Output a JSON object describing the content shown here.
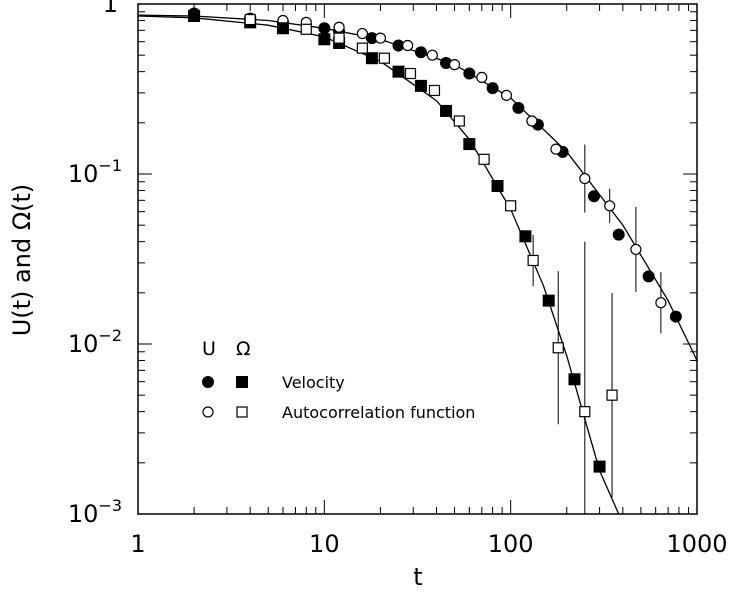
{
  "chart_data": {
    "type": "scatter",
    "title": "",
    "xlabel": "t",
    "ylabel": "U(t) and Ω(t)",
    "xscale": "log",
    "yscale": "log",
    "xlim": [
      1,
      1000
    ],
    "ylim": [
      0.001,
      1
    ],
    "grid": false,
    "x_ticks": [
      {
        "value": 1,
        "label": "1"
      },
      {
        "value": 10,
        "label": "10"
      },
      {
        "value": 100,
        "label": "100"
      },
      {
        "value": 1000,
        "label": "1000"
      }
    ],
    "y_ticks": [
      {
        "value": 1,
        "base": "1",
        "exp": ""
      },
      {
        "value": 0.1,
        "base": "10",
        "exp": "−1"
      },
      {
        "value": 0.01,
        "base": "10",
        "exp": "−2"
      },
      {
        "value": 0.001,
        "base": "10",
        "exp": "−3"
      }
    ],
    "legend": {
      "placement": "lower-left",
      "header_u": "U",
      "header_omega": "Ω",
      "rows": [
        {
          "label": "Velocity"
        },
        {
          "label": "Autocorrelation function"
        }
      ]
    },
    "series": [
      {
        "quantity": "U",
        "kind": "velocity",
        "marker": "filled-circle",
        "points": [
          {
            "x": 2,
            "y": 0.88
          },
          {
            "x": 4,
            "y": 0.82
          },
          {
            "x": 6,
            "y": 0.78
          },
          {
            "x": 10,
            "y": 0.72
          },
          {
            "x": 12,
            "y": 0.69
          },
          {
            "x": 18,
            "y": 0.63
          },
          {
            "x": 25,
            "y": 0.57
          },
          {
            "x": 33,
            "y": 0.52
          },
          {
            "x": 45,
            "y": 0.45
          },
          {
            "x": 60,
            "y": 0.39
          },
          {
            "x": 80,
            "y": 0.32
          },
          {
            "x": 110,
            "y": 0.245
          },
          {
            "x": 140,
            "y": 0.195
          },
          {
            "x": 190,
            "y": 0.135
          },
          {
            "x": 280,
            "y": 0.074
          },
          {
            "x": 380,
            "y": 0.044
          },
          {
            "x": 550,
            "y": 0.025
          },
          {
            "x": 770,
            "y": 0.0145
          }
        ]
      },
      {
        "quantity": "U",
        "kind": "autocorrelation",
        "marker": "open-circle",
        "points": [
          {
            "x": 6,
            "y": 0.8,
            "err": 0
          },
          {
            "x": 8,
            "y": 0.78,
            "err": 0
          },
          {
            "x": 12,
            "y": 0.73,
            "err": 0
          },
          {
            "x": 16,
            "y": 0.67,
            "err": 0
          },
          {
            "x": 20,
            "y": 0.63,
            "err": 0
          },
          {
            "x": 28,
            "y": 0.57,
            "err": 0
          },
          {
            "x": 38,
            "y": 0.5,
            "err": 0
          },
          {
            "x": 50,
            "y": 0.44,
            "err": 0
          },
          {
            "x": 70,
            "y": 0.37,
            "err": 0
          },
          {
            "x": 95,
            "y": 0.29,
            "err": 0
          },
          {
            "x": 130,
            "y": 0.205,
            "err": 0
          },
          {
            "x": 175,
            "y": 0.14,
            "err": 0
          },
          {
            "x": 250,
            "y": 0.094,
            "err": 0.2
          },
          {
            "x": 340,
            "y": 0.065,
            "err": 0.1
          },
          {
            "x": 470,
            "y": 0.036,
            "err": 0.25
          },
          {
            "x": 640,
            "y": 0.0175,
            "err": 0.18
          }
        ]
      },
      {
        "quantity": "Ω",
        "kind": "velocity",
        "marker": "filled-square",
        "points": [
          {
            "x": 2,
            "y": 0.85
          },
          {
            "x": 4,
            "y": 0.78
          },
          {
            "x": 6,
            "y": 0.72
          },
          {
            "x": 10,
            "y": 0.62
          },
          {
            "x": 12,
            "y": 0.59
          },
          {
            "x": 18,
            "y": 0.48
          },
          {
            "x": 25,
            "y": 0.4
          },
          {
            "x": 33,
            "y": 0.33
          },
          {
            "x": 45,
            "y": 0.235
          },
          {
            "x": 60,
            "y": 0.15
          },
          {
            "x": 85,
            "y": 0.085
          },
          {
            "x": 120,
            "y": 0.043
          },
          {
            "x": 160,
            "y": 0.018
          },
          {
            "x": 220,
            "y": 0.0062
          },
          {
            "x": 300,
            "y": 0.0019
          }
        ]
      },
      {
        "quantity": "Ω",
        "kind": "autocorrelation",
        "marker": "open-square",
        "points": [
          {
            "x": 4,
            "y": 0.81,
            "err": 0
          },
          {
            "x": 8,
            "y": 0.71,
            "err": 0
          },
          {
            "x": 12,
            "y": 0.63,
            "err": 0
          },
          {
            "x": 16,
            "y": 0.55,
            "err": 0
          },
          {
            "x": 21,
            "y": 0.48,
            "err": 0
          },
          {
            "x": 29,
            "y": 0.39,
            "err": 0
          },
          {
            "x": 39,
            "y": 0.31,
            "err": 0
          },
          {
            "x": 53,
            "y": 0.205,
            "err": 0
          },
          {
            "x": 72,
            "y": 0.122,
            "err": 0
          },
          {
            "x": 100,
            "y": 0.065,
            "err": 0
          },
          {
            "x": 132,
            "y": 0.031,
            "err": 0.15
          },
          {
            "x": 180,
            "y": 0.0095,
            "err": 0.45
          },
          {
            "x": 250,
            "y": 0.004,
            "err": 1.0
          },
          {
            "x": 350,
            "y": 0.005,
            "err": 0.6
          }
        ]
      }
    ],
    "fit_lines": [
      {
        "for": "U",
        "points": [
          [
            1,
            0.86
          ],
          [
            2,
            0.85
          ],
          [
            5,
            0.8
          ],
          [
            10,
            0.72
          ],
          [
            20,
            0.62
          ],
          [
            50,
            0.44
          ],
          [
            100,
            0.28
          ],
          [
            200,
            0.135
          ],
          [
            400,
            0.05
          ],
          [
            700,
            0.018
          ],
          [
            1000,
            0.008
          ]
        ]
      },
      {
        "for": "Ω",
        "points": [
          [
            1,
            0.85
          ],
          [
            2,
            0.83
          ],
          [
            5,
            0.75
          ],
          [
            10,
            0.64
          ],
          [
            20,
            0.46
          ],
          [
            40,
            0.27
          ],
          [
            60,
            0.16
          ],
          [
            100,
            0.062
          ],
          [
            150,
            0.022
          ],
          [
            200,
            0.0085
          ],
          [
            300,
            0.0018
          ],
          [
            380,
            0.00095
          ]
        ]
      }
    ]
  }
}
